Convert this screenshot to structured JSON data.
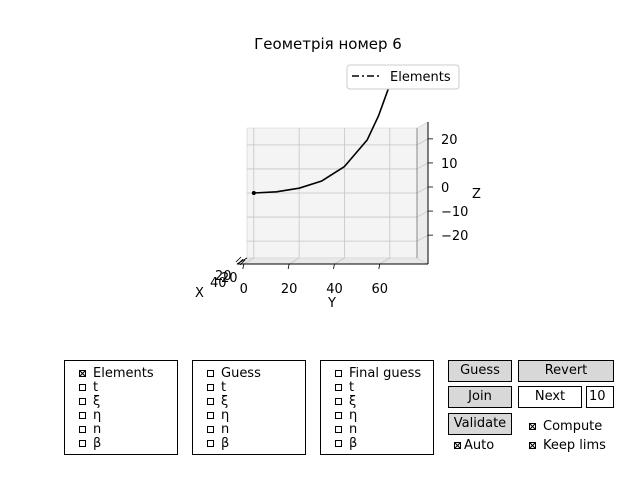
{
  "figure": {
    "title": "Геометрія номер 6",
    "legend": {
      "entry": "Elements"
    },
    "axes": {
      "x_label": "X",
      "y_label": "Y",
      "z_label": "Z",
      "x_ticks": [
        "20",
        "40"
      ],
      "y_ticks": [
        "0",
        "20",
        "40",
        "60"
      ],
      "z_ticks": [
        "20",
        "10",
        "0",
        "−10",
        "−20"
      ]
    }
  },
  "chart_data": {
    "type": "line",
    "title": "Геометрія номер 6",
    "xlabel": "X",
    "ylabel": "Y",
    "zlabel": "Z",
    "legend": [
      "Elements"
    ],
    "legend_position": "top-right",
    "grid": true,
    "ylim": [
      -3,
      72
    ],
    "zlim": [
      -27,
      27
    ],
    "series": [
      {
        "name": "Elements",
        "y": [
          0,
          10,
          20,
          30,
          40,
          50,
          55,
          60
        ],
        "z": [
          0,
          0.5,
          2,
          5,
          11,
          22,
          32,
          45
        ]
      }
    ],
    "start_marker": {
      "y": 0,
      "z": 0
    }
  },
  "panels": [
    {
      "items": [
        {
          "label": "Elements",
          "checked": true
        },
        {
          "label": "t",
          "checked": false
        },
        {
          "label": "ξ",
          "checked": false
        },
        {
          "label": "η",
          "checked": false
        },
        {
          "label": "n",
          "checked": false
        },
        {
          "label": "β",
          "checked": false
        }
      ]
    },
    {
      "items": [
        {
          "label": "Guess",
          "checked": false
        },
        {
          "label": "t",
          "checked": false
        },
        {
          "label": "ξ",
          "checked": false
        },
        {
          "label": "η",
          "checked": false
        },
        {
          "label": "n",
          "checked": false
        },
        {
          "label": "β",
          "checked": false
        }
      ]
    },
    {
      "items": [
        {
          "label": "Final guess",
          "checked": false
        },
        {
          "label": "t",
          "checked": false
        },
        {
          "label": "ξ",
          "checked": false
        },
        {
          "label": "η",
          "checked": false
        },
        {
          "label": "n",
          "checked": false
        },
        {
          "label": "β",
          "checked": false
        }
      ]
    }
  ],
  "controls": {
    "guess_label": "Guess",
    "revert_label": "Revert",
    "join_label": "Join",
    "next_label": "Next",
    "next_count": "10",
    "validate_label": "Validate",
    "compute_label": "Compute",
    "compute_checked": true,
    "keep_lims_label": "Keep lims",
    "keep_lims_checked": true,
    "auto_label": "Auto",
    "auto_checked": true
  }
}
